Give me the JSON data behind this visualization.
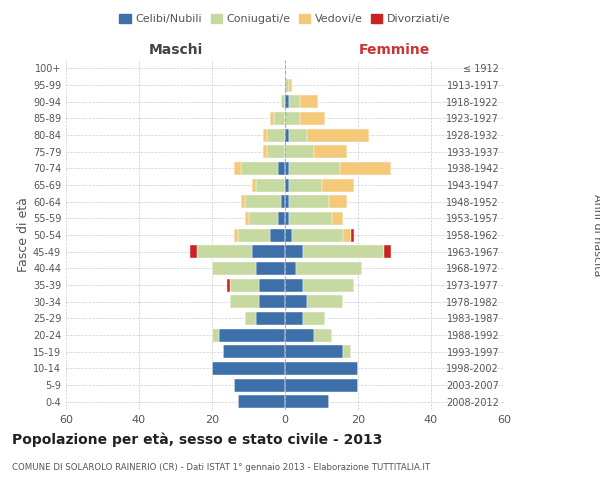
{
  "age_groups": [
    "0-4",
    "5-9",
    "10-14",
    "15-19",
    "20-24",
    "25-29",
    "30-34",
    "35-39",
    "40-44",
    "45-49",
    "50-54",
    "55-59",
    "60-64",
    "65-69",
    "70-74",
    "75-79",
    "80-84",
    "85-89",
    "90-94",
    "95-99",
    "100+"
  ],
  "birth_years": [
    "2008-2012",
    "2003-2007",
    "1998-2002",
    "1993-1997",
    "1988-1992",
    "1983-1987",
    "1978-1982",
    "1973-1977",
    "1968-1972",
    "1963-1967",
    "1958-1962",
    "1953-1957",
    "1948-1952",
    "1943-1947",
    "1938-1942",
    "1933-1937",
    "1928-1932",
    "1923-1927",
    "1918-1922",
    "1913-1917",
    "≤ 1912"
  ],
  "males": {
    "celibi": [
      13,
      14,
      20,
      17,
      18,
      8,
      7,
      7,
      8,
      9,
      4,
      2,
      1,
      0,
      2,
      0,
      0,
      0,
      0,
      0,
      0
    ],
    "coniugati": [
      0,
      0,
      0,
      0,
      2,
      3,
      8,
      8,
      12,
      15,
      9,
      8,
      10,
      8,
      10,
      5,
      5,
      3,
      1,
      0,
      0
    ],
    "vedovi": [
      0,
      0,
      0,
      0,
      0,
      0,
      0,
      0,
      0,
      0,
      1,
      1,
      1,
      1,
      2,
      1,
      1,
      1,
      0,
      0,
      0
    ],
    "divorziati": [
      0,
      0,
      0,
      0,
      0,
      0,
      0,
      1,
      0,
      2,
      0,
      0,
      0,
      0,
      0,
      0,
      0,
      0,
      0,
      0,
      0
    ]
  },
  "females": {
    "nubili": [
      12,
      20,
      20,
      16,
      8,
      5,
      6,
      5,
      3,
      5,
      2,
      1,
      1,
      1,
      1,
      0,
      1,
      0,
      1,
      0,
      0
    ],
    "coniugate": [
      0,
      0,
      0,
      2,
      5,
      6,
      10,
      14,
      18,
      22,
      14,
      12,
      11,
      9,
      14,
      8,
      5,
      4,
      3,
      1,
      0
    ],
    "vedove": [
      0,
      0,
      0,
      0,
      0,
      0,
      0,
      0,
      0,
      0,
      2,
      3,
      5,
      9,
      14,
      9,
      17,
      7,
      5,
      1,
      0
    ],
    "divorziate": [
      0,
      0,
      0,
      0,
      0,
      0,
      0,
      0,
      0,
      2,
      1,
      0,
      0,
      0,
      0,
      0,
      0,
      0,
      0,
      0,
      0
    ]
  },
  "colors": {
    "celibi_nubili": "#3d6fa8",
    "coniugati": "#c5d9a0",
    "vedovi": "#f5c97a",
    "divorziati": "#cc2222"
  },
  "xlim": 60,
  "title": "Popolazione per età, sesso e stato civile - 2013",
  "subtitle": "COMUNE DI SOLAROLO RAINERIO (CR) - Dati ISTAT 1° gennaio 2013 - Elaborazione TUTTITALIA.IT",
  "ylabel": "Fasce di età",
  "right_ylabel": "Anni di nascita",
  "legend_labels": [
    "Celibi/Nubili",
    "Coniugati/e",
    "Vedovi/e",
    "Divorziati/e"
  ],
  "maschi_label": "Maschi",
  "femmine_label": "Femmine",
  "background_color": "#ffffff",
  "grid_color": "#cccccc"
}
